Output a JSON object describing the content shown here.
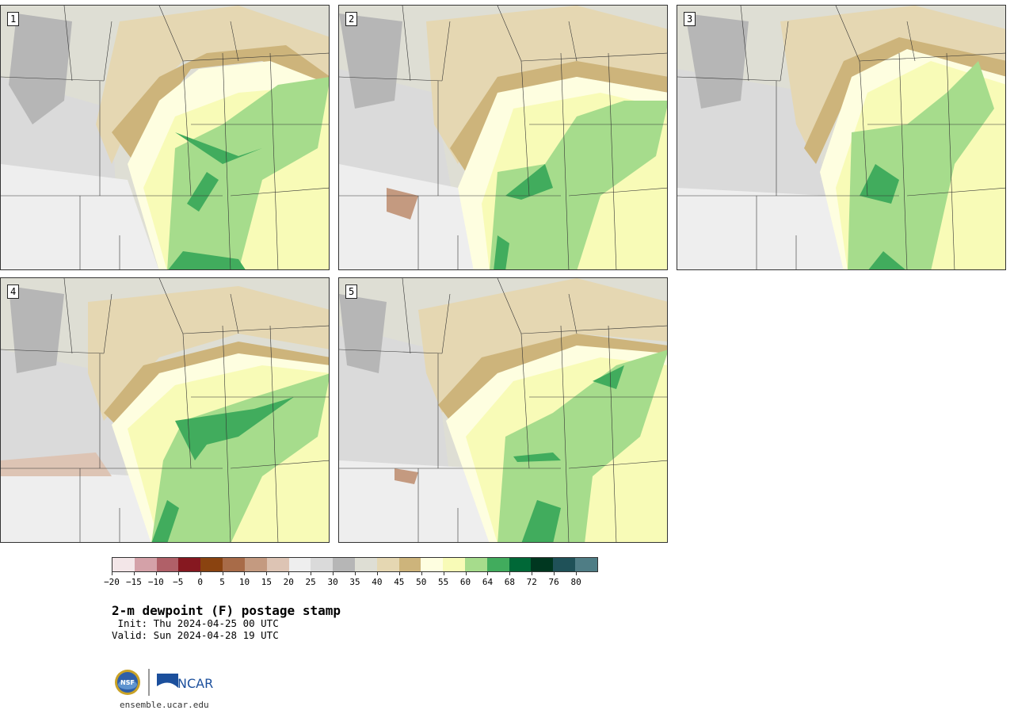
{
  "panels": [
    {
      "id": "1"
    },
    {
      "id": "2"
    },
    {
      "id": "3"
    },
    {
      "id": "4"
    },
    {
      "id": "5"
    }
  ],
  "colorbar": {
    "colors": [
      "#f3e6e8",
      "#d4a1a8",
      "#b06068",
      "#861820",
      "#8a4310",
      "#a86b48",
      "#c49a80",
      "#ddc4b4",
      "#eeeeee",
      "#dadada",
      "#b6b6b6",
      "#deded4",
      "#e5d7b2",
      "#cdb47b",
      "#fefee0",
      "#f8fbb7",
      "#a6dc8c",
      "#41ac5d",
      "#006837",
      "#003720",
      "#1f5158",
      "#4f7d85"
    ],
    "tick_labels": [
      "−20",
      "−15",
      "−10",
      "−5",
      "0",
      "5",
      "10",
      "15",
      "20",
      "25",
      "30",
      "35",
      "40",
      "45",
      "50",
      "55",
      "60",
      "64",
      "68",
      "72",
      "76",
      "80"
    ]
  },
  "title": "2-m dewpoint (F) postage stamp",
  "init": " Init: Thu 2024-04-25 00 UTC",
  "valid": "Valid: Sun 2024-04-28 19 UTC",
  "logos": {
    "nsf": "NSF",
    "ncar": "NCAR"
  },
  "site": "ensemble.ucar.edu"
}
